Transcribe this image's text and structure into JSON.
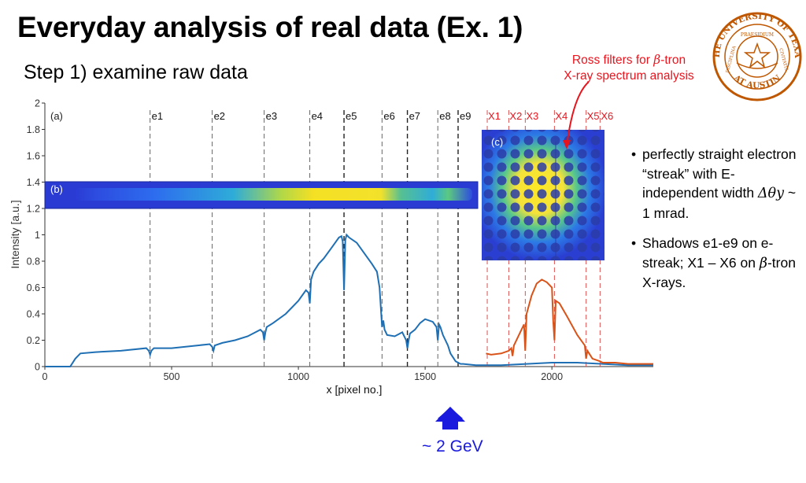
{
  "slide": {
    "title": "Everyday analysis of real data (Ex. 1)",
    "subtitle": "Step 1) examine raw data",
    "ross_note": {
      "line1_prefix": "Ross filters for ",
      "beta": "β",
      "line1_suffix": "-tron",
      "line2": "X-ray spectrum analysis"
    },
    "bullets": [
      {
        "pre": "perfectly straight electron “streak” with E-independent width ",
        "sym": "Δθy",
        "post": " ~ 1 mrad."
      },
      {
        "pre": "Shadows e1-e9 on e-streak; X1 – X6 on ",
        "sym": "β",
        "post": "-tron X-rays."
      }
    ],
    "energy_label": "~ 2 GeV",
    "logo": {
      "text_top": "THE UNIVERSITY OF TEXAS",
      "text_bottom": "AT AUSTIN",
      "motto_left": "DISCIPLINA",
      "motto_right": "CIVITATIS",
      "banner": "PRAESIDIUM"
    },
    "colors": {
      "note": "#e8141d",
      "arrow": "#1a1adf",
      "electron_curve": "#1f6fb4",
      "xray_curve": "#d95319",
      "logo": "#bf5700"
    }
  },
  "chart_data": {
    "type": "line",
    "xlabel": "x [pixel no.]",
    "ylabel": "Intensity [a.u.]",
    "xlim": [
      0,
      2400
    ],
    "ylim": [
      0,
      2
    ],
    "xticks": [
      0,
      500,
      1000,
      1500,
      2000
    ],
    "yticks": [
      0,
      0.2,
      0.4,
      0.6,
      0.8,
      1,
      1.2,
      1.4,
      1.6,
      1.8,
      2
    ],
    "ytick_labels": [
      "0",
      "0.2",
      "0.4",
      "0.6",
      "0.8",
      "1",
      "1.2",
      "1.4",
      "1.6",
      "1.8",
      "2"
    ],
    "panel_labels": {
      "a": "(a)",
      "b": "(b)",
      "c": "(c)"
    },
    "e_markers": [
      {
        "label": "e1",
        "x": 415
      },
      {
        "label": "e2",
        "x": 660
      },
      {
        "label": "e3",
        "x": 865
      },
      {
        "label": "e4",
        "x": 1045
      },
      {
        "label": "e5",
        "x": 1180
      },
      {
        "label": "e6",
        "x": 1330
      },
      {
        "label": "e7",
        "x": 1430
      },
      {
        "label": "e8",
        "x": 1550
      },
      {
        "label": "e9",
        "x": 1630
      }
    ],
    "x_markers": [
      {
        "label": "X1",
        "x": 1745
      },
      {
        "label": "X2",
        "x": 1830
      },
      {
        "label": "X3",
        "x": 1895
      },
      {
        "label": "X4",
        "x": 2010
      },
      {
        "label": "X5",
        "x": 2135
      },
      {
        "label": "X6",
        "x": 2190
      }
    ],
    "series": [
      {
        "x": [
          0,
          100,
          120,
          140,
          200,
          300,
          400,
          410,
          415,
          420,
          430,
          500,
          600,
          650,
          660,
          665,
          670,
          700,
          750,
          800,
          850,
          860,
          865,
          870,
          875,
          900,
          950,
          1000,
          1030,
          1040,
          1045,
          1050,
          1060,
          1080,
          1100,
          1130,
          1160,
          1170,
          1175,
          1180,
          1185,
          1190,
          1200,
          1230,
          1260,
          1290,
          1310,
          1320,
          1330,
          1335,
          1340,
          1350,
          1380,
          1410,
          1425,
          1430,
          1435,
          1440,
          1460,
          1480,
          1500,
          1530,
          1545,
          1550,
          1555,
          1560,
          1570,
          1590,
          1600,
          1610,
          1620,
          1630,
          1640,
          1650,
          1700,
          1750,
          1800,
          1900,
          2000,
          2100,
          2200,
          2300,
          2400
        ],
        "y": [
          0,
          0,
          0.06,
          0.1,
          0.11,
          0.12,
          0.14,
          0.12,
          0.09,
          0.12,
          0.14,
          0.14,
          0.16,
          0.17,
          0.15,
          0.12,
          0.16,
          0.18,
          0.2,
          0.23,
          0.28,
          0.26,
          0.2,
          0.26,
          0.3,
          0.33,
          0.4,
          0.5,
          0.58,
          0.56,
          0.48,
          0.66,
          0.72,
          0.78,
          0.82,
          0.9,
          0.98,
          0.99,
          0.95,
          0.58,
          0.96,
          1.0,
          0.98,
          0.94,
          0.86,
          0.78,
          0.72,
          0.6,
          0.3,
          0.35,
          0.28,
          0.24,
          0.23,
          0.26,
          0.2,
          0.14,
          0.2,
          0.25,
          0.28,
          0.33,
          0.36,
          0.34,
          0.3,
          0.2,
          0.32,
          0.3,
          0.24,
          0.16,
          0.1,
          0.07,
          0.04,
          0.03,
          0.02,
          0.02,
          0.01,
          0.01,
          0.01,
          0.02,
          0.03,
          0.03,
          0.02,
          0.01,
          0.01
        ]
      },
      {
        "x": [
          1740,
          1760,
          1800,
          1830,
          1840,
          1845,
          1850,
          1870,
          1890,
          1895,
          1900,
          1920,
          1940,
          1960,
          1980,
          2000,
          2005,
          2010,
          2015,
          2030,
          2060,
          2100,
          2130,
          2135,
          2140,
          2160,
          2190,
          2200,
          2250,
          2300,
          2400
        ],
        "y": [
          0.1,
          0.09,
          0.1,
          0.12,
          0.14,
          0.08,
          0.16,
          0.24,
          0.32,
          0.12,
          0.4,
          0.54,
          0.63,
          0.66,
          0.64,
          0.6,
          0.35,
          0.2,
          0.5,
          0.48,
          0.38,
          0.24,
          0.16,
          0.06,
          0.12,
          0.06,
          0.04,
          0.03,
          0.03,
          0.02,
          0.02
        ]
      }
    ]
  }
}
